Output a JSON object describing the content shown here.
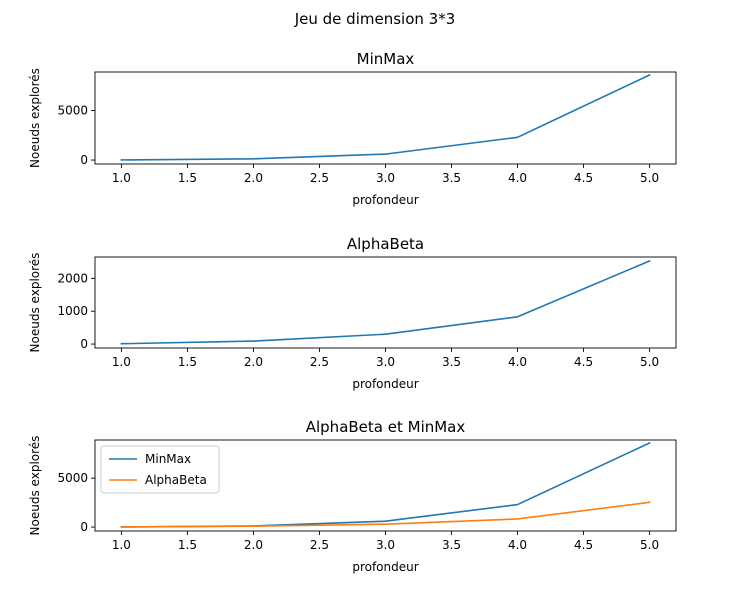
{
  "figure": {
    "suptitle": "Jeu de dimension 3*3"
  },
  "chart_data": [
    {
      "type": "line",
      "title": "MinMax",
      "xlabel": "profondeur",
      "ylabel": "Noeuds explorés",
      "xlim": [
        0.8,
        5.2
      ],
      "ylim": [
        -400,
        8900
      ],
      "xticks": [
        1.0,
        1.5,
        2.0,
        2.5,
        3.0,
        3.5,
        4.0,
        4.5,
        5.0
      ],
      "xtick_labels": [
        "1.0",
        "1.5",
        "2.0",
        "2.5",
        "3.0",
        "3.5",
        "4.0",
        "4.5",
        "5.0"
      ],
      "yticks": [
        0,
        5000
      ],
      "ytick_labels": [
        "0",
        "5000"
      ],
      "legend": false,
      "series": [
        {
          "x": [
            1,
            2,
            3,
            4,
            5
          ],
          "y": [
            10,
            120,
            600,
            2300,
            8600
          ],
          "color": "#1f77b4"
        }
      ]
    },
    {
      "type": "line",
      "title": "AlphaBeta",
      "xlabel": "profondeur",
      "ylabel": "Noeuds explorés",
      "xlim": [
        0.8,
        5.2
      ],
      "ylim": [
        -120,
        2650
      ],
      "xticks": [
        1.0,
        1.5,
        2.0,
        2.5,
        3.0,
        3.5,
        4.0,
        4.5,
        5.0
      ],
      "xtick_labels": [
        "1.0",
        "1.5",
        "2.0",
        "2.5",
        "3.0",
        "3.5",
        "4.0",
        "4.5",
        "5.0"
      ],
      "yticks": [
        0,
        1000,
        2000
      ],
      "ytick_labels": [
        "0",
        "1000",
        "2000"
      ],
      "legend": false,
      "series": [
        {
          "x": [
            1,
            2,
            3,
            4,
            5
          ],
          "y": [
            10,
            90,
            300,
            830,
            2530
          ],
          "color": "#1f77b4"
        }
      ]
    },
    {
      "type": "line",
      "title": "AlphaBeta et MinMax",
      "xlabel": "profondeur",
      "ylabel": "Noeuds explorés",
      "xlim": [
        0.8,
        5.2
      ],
      "ylim": [
        -400,
        8900
      ],
      "xticks": [
        1.0,
        1.5,
        2.0,
        2.5,
        3.0,
        3.5,
        4.0,
        4.5,
        5.0
      ],
      "xtick_labels": [
        "1.0",
        "1.5",
        "2.0",
        "2.5",
        "3.0",
        "3.5",
        "4.0",
        "4.5",
        "5.0"
      ],
      "yticks": [
        0,
        5000
      ],
      "ytick_labels": [
        "0",
        "5000"
      ],
      "legend": true,
      "legend_position": "upper-left",
      "series": [
        {
          "name": "MinMax",
          "x": [
            1,
            2,
            3,
            4,
            5
          ],
          "y": [
            10,
            120,
            600,
            2300,
            8600
          ],
          "color": "#1f77b4"
        },
        {
          "name": "AlphaBeta",
          "x": [
            1,
            2,
            3,
            4,
            5
          ],
          "y": [
            10,
            90,
            300,
            830,
            2530
          ],
          "color": "#ff7f0e"
        }
      ]
    }
  ]
}
